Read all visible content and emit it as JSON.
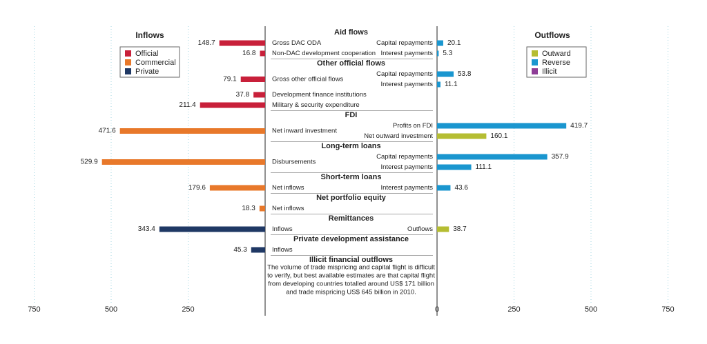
{
  "chart_data": {
    "type": "bar",
    "left_panel_title": "Inflows",
    "right_panel_title": "Outflows",
    "left_legend": [
      {
        "label": "Official",
        "color": "#c8203a"
      },
      {
        "label": "Commercial",
        "color": "#e8782a"
      },
      {
        "label": "Private",
        "color": "#1f3864"
      }
    ],
    "right_legend": [
      {
        "label": "Outward",
        "color": "#b5bd32"
      },
      {
        "label": "Reverse",
        "color": "#1a96cf"
      },
      {
        "label": "Illicit",
        "color": "#8e3d96"
      }
    ],
    "left_ticks": [
      "750",
      "500",
      "250"
    ],
    "right_ticks": [
      "0",
      "250",
      "500",
      "750"
    ],
    "xlim": [
      0,
      750
    ],
    "grid": true,
    "sections": [
      {
        "header": "Aid flows",
        "inflows": [
          {
            "label": "Gross DAC ODA",
            "value": 148.7,
            "type": "Official"
          },
          {
            "label": "Non-DAC development cooperation",
            "value": 16.8,
            "type": "Official"
          }
        ],
        "outflows": [
          {
            "label": "Capital repayments",
            "value": 20.1,
            "type": "Reverse"
          },
          {
            "label": "Interest payments",
            "value": 5.3,
            "type": "Reverse"
          }
        ]
      },
      {
        "header": "Other official flows",
        "inflows": [
          {
            "label": "Gross other official flows",
            "value": 79.1,
            "type": "Official"
          },
          {
            "label": "Development finance institutions",
            "value": 37.8,
            "type": "Official"
          },
          {
            "label": "Military & security expenditure",
            "value": 211.4,
            "type": "Official"
          }
        ],
        "outflows": [
          {
            "label": "Capital repayments",
            "value": 53.8,
            "type": "Reverse"
          },
          {
            "label": "Interest payments",
            "value": 11.1,
            "type": "Reverse"
          }
        ]
      },
      {
        "header": "FDI",
        "inflows": [
          {
            "label": "Net inward investment",
            "value": 471.6,
            "type": "Commercial"
          }
        ],
        "outflows": [
          {
            "label": "Profits on FDI",
            "value": 419.7,
            "type": "Reverse"
          },
          {
            "label": "Net outward investment",
            "value": 160.1,
            "type": "Outward"
          }
        ]
      },
      {
        "header": "Long-term loans",
        "inflows": [
          {
            "label": "Disbursements",
            "value": 529.9,
            "type": "Commercial"
          }
        ],
        "outflows": [
          {
            "label": "Capital repayments",
            "value": 357.9,
            "type": "Reverse"
          },
          {
            "label": "Interest payments",
            "value": 111.1,
            "type": "Reverse"
          }
        ]
      },
      {
        "header": "Short-term loans",
        "inflows": [
          {
            "label": "Net inflows",
            "value": 179.6,
            "type": "Commercial"
          }
        ],
        "outflows": [
          {
            "label": "Interest payments",
            "value": 43.6,
            "type": "Reverse"
          }
        ]
      },
      {
        "header": "Net portfolio equity",
        "inflows": [
          {
            "label": "Net inflows",
            "value": 18.3,
            "type": "Commercial"
          }
        ],
        "outflows": []
      },
      {
        "header": "Remittances",
        "inflows": [
          {
            "label": "Inflows",
            "value": 343.4,
            "type": "Private"
          }
        ],
        "outflows": [
          {
            "label": "Outflows",
            "value": 38.7,
            "type": "Outward"
          }
        ]
      },
      {
        "header": "Private development assistance",
        "inflows": [
          {
            "label": "Inflows",
            "value": 45.3,
            "type": "Private"
          }
        ],
        "outflows": []
      },
      {
        "header": "Illicit financial outflows",
        "inflows": [],
        "outflows": [],
        "note_lines": [
          "The volume of trade mispricing and capital flight is difficult",
          "to verify, but best available estimates are that capital flight",
          "from developing countries totalled around US$ 171 billion",
          "and trade mispricing US$ 645 billion in 2010."
        ]
      }
    ]
  }
}
